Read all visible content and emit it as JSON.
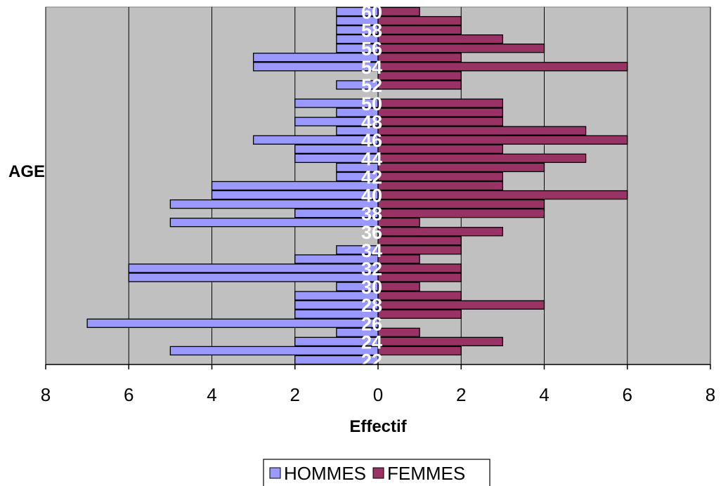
{
  "chart_data": {
    "type": "bar",
    "orientation": "horizontal",
    "layout": "population-pyramid",
    "ylabel": "AGE",
    "xlabel": "Effectif",
    "xlim": [
      -8,
      8
    ],
    "x_tick_labels": [
      "8",
      "6",
      "4",
      "2",
      "0",
      "2",
      "4",
      "6",
      "8"
    ],
    "ages": [
      22,
      23,
      24,
      25,
      26,
      27,
      28,
      29,
      30,
      31,
      32,
      33,
      34,
      35,
      36,
      37,
      38,
      39,
      40,
      41,
      42,
      43,
      44,
      45,
      46,
      47,
      48,
      49,
      50,
      51,
      52,
      53,
      54,
      55,
      56,
      57,
      58,
      59,
      60
    ],
    "age_labels": [
      "22",
      "24",
      "26",
      "28",
      "30",
      "32",
      "34",
      "36",
      "38",
      "40",
      "42",
      "44",
      "46",
      "48",
      "50",
      "52",
      "54",
      "56",
      "58",
      "60"
    ],
    "grid": "vertical",
    "legend_position": "bottom",
    "series": [
      {
        "name": "HOMMES",
        "color": "#9999ff",
        "values": [
          2,
          5,
          2,
          1,
          7,
          2,
          2,
          2,
          1,
          6,
          6,
          2,
          1,
          0,
          0,
          5,
          2,
          5,
          4,
          4,
          1,
          1,
          2,
          2,
          3,
          1,
          2,
          1,
          2,
          0,
          1,
          0,
          3,
          3,
          1,
          1,
          1,
          1,
          1
        ]
      },
      {
        "name": "FEMMES",
        "color": "#993366",
        "values": [
          0,
          2,
          3,
          1,
          0,
          2,
          4,
          2,
          1,
          2,
          2,
          1,
          2,
          2,
          3,
          1,
          4,
          4,
          6,
          3,
          3,
          4,
          5,
          3,
          6,
          5,
          3,
          3,
          3,
          0,
          2,
          2,
          6,
          2,
          4,
          3,
          2,
          2,
          1
        ]
      }
    ]
  }
}
